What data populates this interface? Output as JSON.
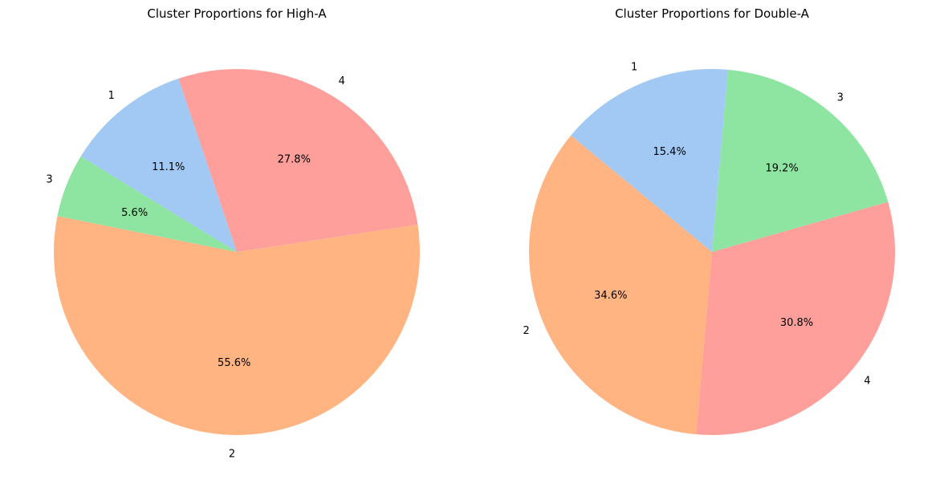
{
  "chart_data": [
    {
      "type": "pie",
      "title": "Cluster Proportions for High-A",
      "labels": [
        "1",
        "4",
        "2",
        "3"
      ],
      "values": [
        11.1,
        27.8,
        55.6,
        5.6
      ],
      "percent_labels": [
        "11.1%",
        "27.8%",
        "55.6%",
        "5.6%"
      ],
      "colors": [
        "#a1c9f4",
        "#ff9f9b",
        "#ffb482",
        "#8de5a1"
      ],
      "direction": "clockwise",
      "legend": "none"
    },
    {
      "type": "pie",
      "title": "Cluster Proportions for Double-A",
      "labels": [
        "3",
        "4",
        "2",
        "1"
      ],
      "values": [
        19.2,
        30.8,
        34.6,
        15.4
      ],
      "percent_labels": [
        "19.2%",
        "30.8%",
        "34.6%",
        "15.4%"
      ],
      "colors": [
        "#8de5a1",
        "#ff9f9b",
        "#ffb482",
        "#a1c9f4"
      ],
      "direction": "clockwise",
      "legend": "none"
    }
  ]
}
